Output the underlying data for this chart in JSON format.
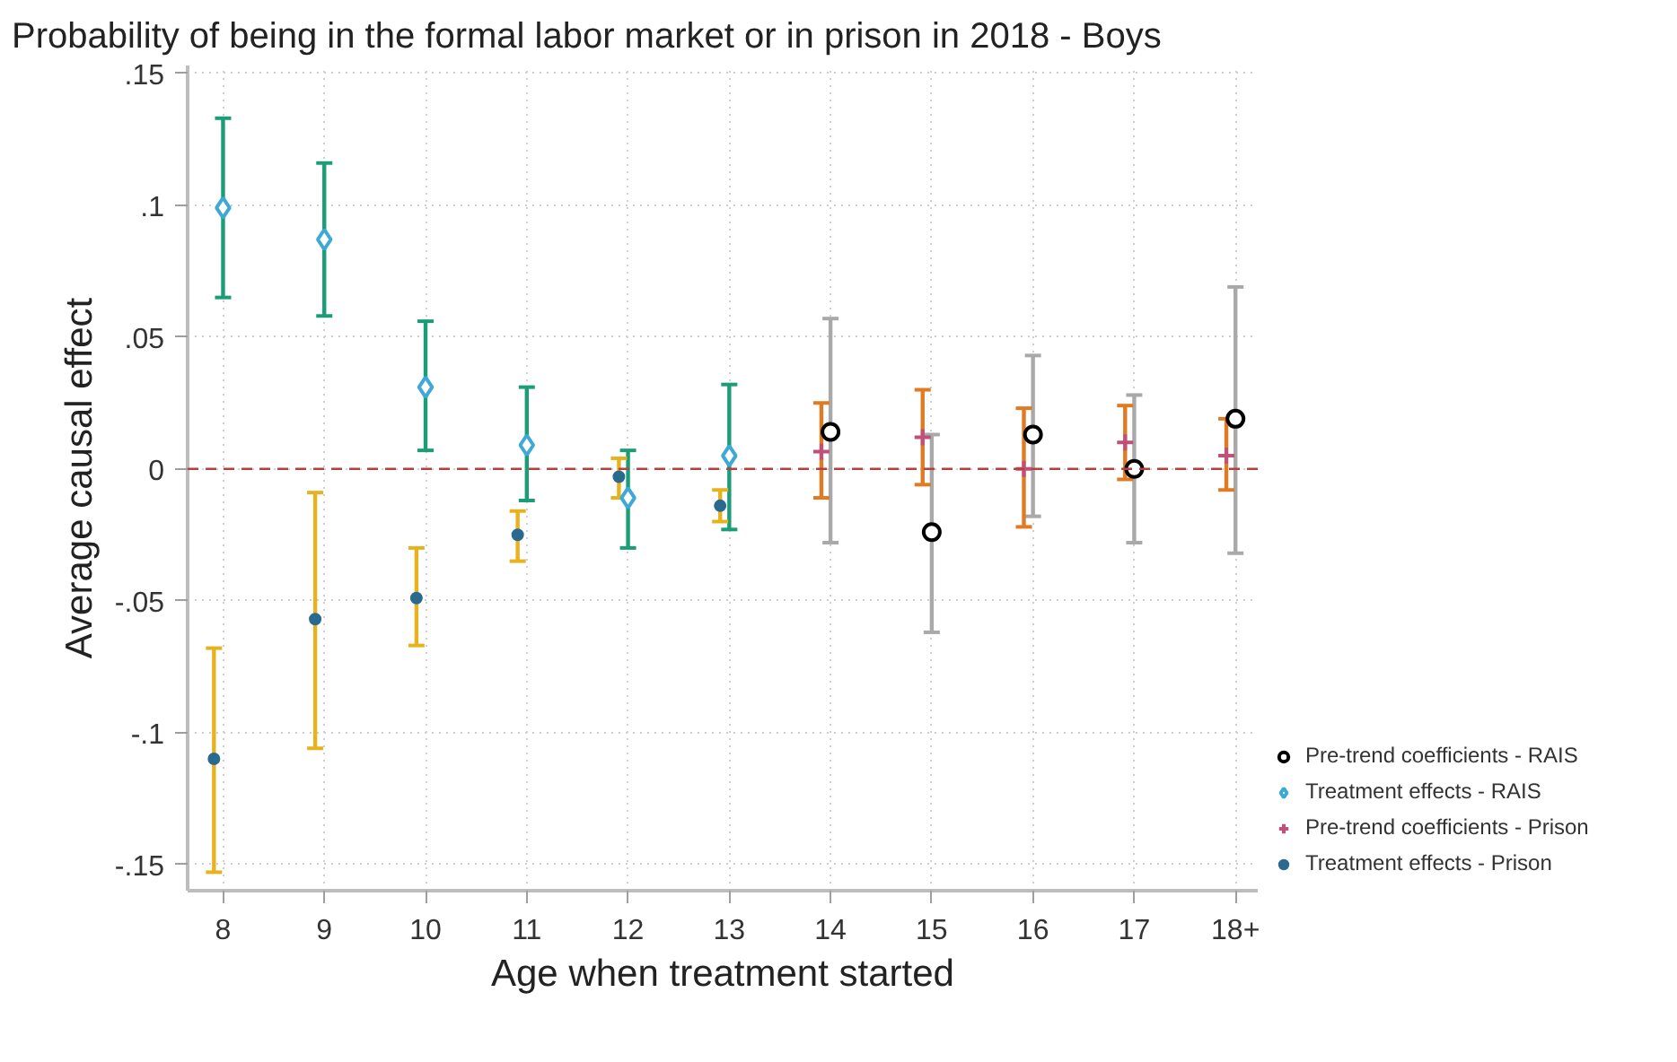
{
  "chart_data": {
    "type": "scatter",
    "title": "Probability of being in the formal labor market or in prison in 2018 - Boys",
    "xlabel": "Age when treatment started",
    "ylabel": "Average causal effect",
    "categories": [
      "8",
      "9",
      "10",
      "11",
      "12",
      "13",
      "14",
      "15",
      "16",
      "17",
      "18+"
    ],
    "ylim": [
      -0.16,
      0.153
    ],
    "yticks": [
      {
        "value": -0.15,
        "label": "-.15"
      },
      {
        "value": -0.1,
        "label": "-.1"
      },
      {
        "value": -0.05,
        "label": "-.05"
      },
      0,
      {
        "value": 0.05,
        "label": ".05"
      },
      {
        "value": 0.1,
        "label": ".1"
      },
      {
        "value": 0.15,
        "label": ".15"
      }
    ],
    "grid": true,
    "legend": "bottom right",
    "ref_lines": [
      {
        "axis": "y",
        "value": 0,
        "color": "#b5403f",
        "line_style": "dashed"
      }
    ],
    "series": [
      {
        "name": "Pre-trend coefficients - RAIS",
        "marker": "circle",
        "color": "#000000",
        "values": [
          null,
          null,
          null,
          null,
          null,
          null,
          0.014,
          -0.024,
          0.013,
          0.0,
          0.019
        ],
        "errors": [
          null,
          null,
          null,
          null,
          null,
          null,
          [
            -0.028,
            0.057
          ],
          [
            -0.062,
            0.013
          ],
          [
            -0.018,
            0.043
          ],
          [
            -0.028,
            0.028
          ],
          [
            -0.032,
            0.069
          ]
        ]
      },
      {
        "name": "Treatment effects - RAIS",
        "marker": "diamond",
        "color": "#3fa9d6",
        "values": [
          0.099,
          0.087,
          0.031,
          0.009,
          -0.011,
          0.005,
          null,
          null,
          null,
          null,
          null
        ],
        "errors": [
          [
            0.065,
            0.133
          ],
          [
            0.058,
            0.116
          ],
          [
            0.007,
            0.056
          ],
          [
            -0.012,
            0.031
          ],
          [
            -0.03,
            0.007
          ],
          [
            -0.023,
            0.032
          ],
          null,
          null,
          null,
          null,
          null
        ]
      },
      {
        "name": "Pre-trend coefficients - Prison",
        "marker": "cross",
        "color": "#c0507a",
        "values": [
          null,
          null,
          null,
          null,
          null,
          null,
          0.0065,
          0.012,
          0.0,
          0.01,
          0.005
        ],
        "errors": [
          null,
          null,
          null,
          null,
          null,
          null,
          [
            -0.011,
            0.025
          ],
          [
            -0.006,
            0.03
          ],
          [
            -0.022,
            0.023
          ],
          [
            -0.004,
            0.024
          ],
          [
            -0.008,
            0.019
          ]
        ]
      },
      {
        "name": "Treatment effects - Prison",
        "marker": "circle",
        "color": "#2b6a8f",
        "values": [
          -0.11,
          -0.057,
          -0.049,
          -0.025,
          -0.003,
          -0.014,
          null,
          null,
          null,
          null,
          null
        ],
        "errors": [
          [
            -0.153,
            -0.068
          ],
          [
            -0.106,
            -0.009
          ],
          [
            -0.067,
            -0.03
          ],
          [
            -0.035,
            -0.016
          ],
          [
            -0.011,
            0.004
          ],
          [
            -0.02,
            -0.008
          ],
          null,
          null,
          null,
          null,
          null
        ]
      }
    ]
  }
}
